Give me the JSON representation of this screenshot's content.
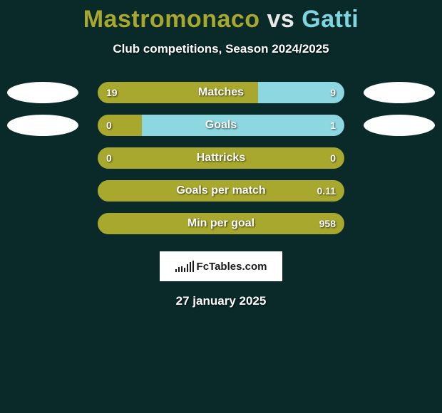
{
  "title": {
    "player1": "Mastromonaco",
    "vs": "vs",
    "player2": "Gatti"
  },
  "subtitle": "Club competitions, Season 2024/2025",
  "colors": {
    "background": "#0a2a2a",
    "left": "#a8a82e",
    "right": "#8dd8e0",
    "text": "#ffffff",
    "logo_bg": "#ffffff",
    "logo_fg": "#1a1a1a"
  },
  "bar_track_width": 346,
  "ellipse_rows": [
    0,
    1
  ],
  "stats": [
    {
      "label": "Matches",
      "left_val": "19",
      "right_val": "9",
      "left_pct": 65,
      "right_pct": 35
    },
    {
      "label": "Goals",
      "left_val": "0",
      "right_val": "1",
      "left_pct": 18,
      "right_pct": 82
    },
    {
      "label": "Hattricks",
      "left_val": "0",
      "right_val": "0",
      "left_pct": 100,
      "right_pct": 0
    },
    {
      "label": "Goals per match",
      "left_val": "",
      "right_val": "0.11",
      "left_pct": 100,
      "right_pct": 0
    },
    {
      "label": "Min per goal",
      "left_val": "",
      "right_val": "958",
      "left_pct": 100,
      "right_pct": 0
    }
  ],
  "logo": {
    "text": "FcTables.com",
    "bar_heights": [
      4,
      7,
      8,
      6,
      11,
      14,
      16
    ]
  },
  "date": "27 january 2025"
}
